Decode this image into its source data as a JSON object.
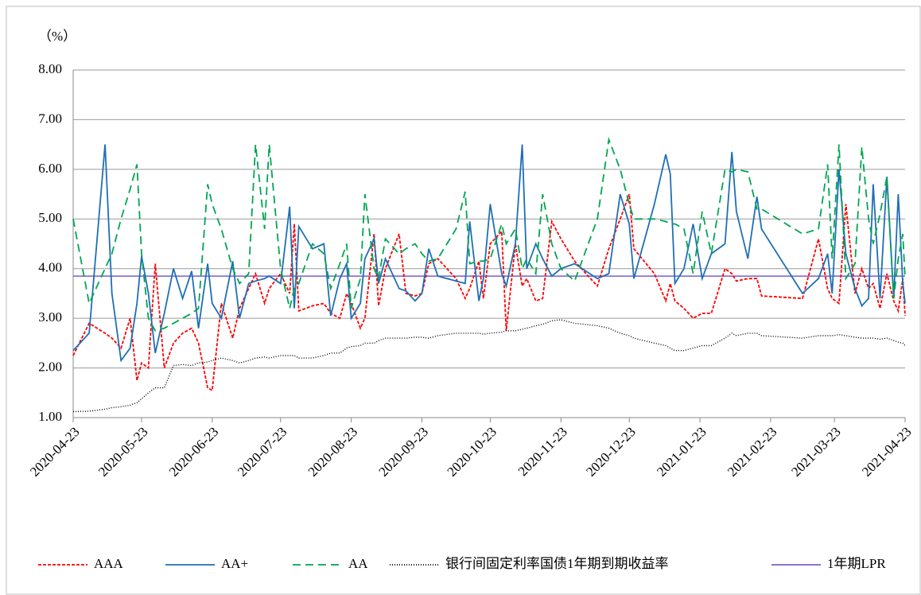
{
  "chart_data": {
    "type": "line",
    "y_axis_label": "（%）",
    "x": [
      "2020-04-23",
      "2020-04-30",
      "2020-05-07",
      "2020-05-10",
      "2020-05-14",
      "2020-05-18",
      "2020-05-21",
      "2020-05-23",
      "2020-05-26",
      "2020-05-29",
      "2020-06-02",
      "2020-06-06",
      "2020-06-10",
      "2020-06-14",
      "2020-06-17",
      "2020-06-21",
      "2020-06-23",
      "2020-06-27",
      "2020-07-02",
      "2020-07-05",
      "2020-07-09",
      "2020-07-12",
      "2020-07-16",
      "2020-07-18",
      "2020-07-23",
      "2020-07-27",
      "2020-07-29",
      "2020-07-31",
      "2020-08-06",
      "2020-08-11",
      "2020-08-14",
      "2020-08-18",
      "2020-08-21",
      "2020-08-23",
      "2020-08-27",
      "2020-08-29",
      "2020-09-02",
      "2020-09-04",
      "2020-09-07",
      "2020-09-13",
      "2020-09-16",
      "2020-09-20",
      "2020-09-23",
      "2020-09-26",
      "2020-09-30",
      "2020-10-08",
      "2020-10-12",
      "2020-10-14",
      "2020-10-18",
      "2020-10-20",
      "2020-10-23",
      "2020-10-28",
      "2020-10-30",
      "2020-11-03",
      "2020-11-06",
      "2020-11-08",
      "2020-11-12",
      "2020-11-15",
      "2020-11-19",
      "2020-11-23",
      "2020-11-29",
      "2020-12-09",
      "2020-12-14",
      "2020-12-19",
      "2020-12-23",
      "2020-12-25",
      "2021-01-03",
      "2021-01-08",
      "2021-01-10",
      "2021-01-12",
      "2021-01-16",
      "2021-01-20",
      "2021-01-24",
      "2021-01-28",
      "2021-02-03",
      "2021-02-06",
      "2021-02-08",
      "2021-02-13",
      "2021-02-17",
      "2021-02-19",
      "2021-03-09",
      "2021-03-16",
      "2021-03-20",
      "2021-03-22",
      "2021-03-25",
      "2021-03-28",
      "2021-04-01",
      "2021-04-04",
      "2021-04-07",
      "2021-04-09",
      "2021-04-12",
      "2021-04-15",
      "2021-04-18",
      "2021-04-20",
      "2021-04-22",
      "2021-04-23"
    ],
    "series": [
      {
        "name": "AAA",
        "color": "#ff0000",
        "dash": "4,2",
        "values": [
          2.25,
          2.9,
          2.7,
          2.6,
          2.4,
          3.0,
          1.75,
          2.1,
          2.0,
          4.1,
          2.0,
          2.5,
          2.7,
          2.8,
          2.5,
          1.6,
          1.55,
          3.3,
          2.6,
          3.2,
          3.6,
          3.9,
          3.3,
          3.6,
          3.9,
          3.5,
          4.9,
          3.15,
          3.25,
          3.3,
          3.1,
          3.0,
          3.5,
          3.3,
          2.8,
          3.0,
          4.7,
          3.25,
          4.0,
          4.7,
          3.5,
          3.45,
          3.5,
          4.1,
          4.2,
          3.8,
          3.4,
          3.6,
          4.15,
          3.4,
          4.5,
          4.75,
          2.75,
          4.5,
          3.65,
          3.8,
          3.35,
          3.4,
          4.95,
          4.6,
          4.15,
          3.65,
          4.4,
          5.0,
          5.5,
          4.4,
          3.9,
          3.35,
          3.7,
          3.35,
          3.2,
          3.0,
          3.1,
          3.1,
          4.0,
          3.9,
          3.75,
          3.8,
          3.8,
          3.45,
          3.4,
          4.6,
          3.6,
          3.4,
          3.3,
          5.3,
          3.5,
          4.0,
          3.6,
          3.7,
          3.2,
          3.9,
          3.35,
          3.15,
          3.8,
          3.05
        ]
      },
      {
        "name": "AA+",
        "color": "#1f6fb5",
        "dash": "",
        "values": [
          2.35,
          2.7,
          6.5,
          3.5,
          2.15,
          2.4,
          3.3,
          4.25,
          3.5,
          2.3,
          3.1,
          4.0,
          3.4,
          3.95,
          2.8,
          4.1,
          3.3,
          3.0,
          4.15,
          3.0,
          3.7,
          3.75,
          3.8,
          3.85,
          3.7,
          5.25,
          3.2,
          4.85,
          4.4,
          4.5,
          3.05,
          3.8,
          4.1,
          3.0,
          3.3,
          4.2,
          4.6,
          3.7,
          4.2,
          3.6,
          3.55,
          3.35,
          3.5,
          4.4,
          3.85,
          3.75,
          3.7,
          4.95,
          3.35,
          3.8,
          5.3,
          3.9,
          3.65,
          4.5,
          6.5,
          4.0,
          4.5,
          4.2,
          3.85,
          4.0,
          4.1,
          3.8,
          3.9,
          5.5,
          4.9,
          3.8,
          5.3,
          6.3,
          5.9,
          3.7,
          4.0,
          4.9,
          3.8,
          4.3,
          4.5,
          6.35,
          5.15,
          4.2,
          5.45,
          4.8,
          3.5,
          3.8,
          4.3,
          3.5,
          6.0,
          4.3,
          3.6,
          3.25,
          3.4,
          5.7,
          3.4,
          5.85,
          3.4,
          5.5,
          3.7,
          3.3
        ]
      },
      {
        "name": "AA",
        "color": "#00a651",
        "dash": "10,6",
        "values": [
          5.0,
          3.3,
          4.0,
          4.3,
          5.0,
          5.6,
          6.1,
          4.3,
          3.0,
          2.75,
          2.8,
          2.9,
          3.0,
          3.1,
          3.2,
          5.7,
          5.3,
          4.8,
          4.0,
          3.7,
          3.9,
          6.5,
          4.8,
          6.5,
          4.0,
          3.2,
          3.6,
          3.7,
          4.5,
          4.3,
          3.6,
          4.1,
          4.5,
          3.2,
          3.8,
          5.5,
          4.0,
          3.8,
          4.6,
          4.3,
          4.4,
          4.5,
          4.3,
          4.15,
          4.2,
          4.8,
          5.55,
          4.1,
          4.15,
          4.15,
          4.2,
          4.9,
          4.5,
          4.8,
          4.0,
          4.2,
          3.9,
          5.5,
          4.5,
          4.0,
          3.75,
          5.0,
          6.6,
          6.0,
          5.3,
          5.0,
          5.0,
          4.95,
          4.9,
          4.9,
          4.8,
          3.9,
          5.15,
          4.3,
          6.0,
          5.95,
          6.0,
          5.95,
          5.2,
          5.2,
          4.7,
          4.8,
          6.1,
          4.2,
          6.5,
          3.8,
          4.1,
          6.45,
          5.0,
          4.5,
          5.1,
          5.85,
          3.4,
          4.2,
          4.7,
          3.8
        ]
      },
      {
        "name": "银行间固定利率国债1年期到期收益率",
        "color": "#000000",
        "dash": "1,2",
        "values": [
          1.12,
          1.13,
          1.17,
          1.2,
          1.22,
          1.25,
          1.3,
          1.38,
          1.5,
          1.6,
          1.6,
          2.05,
          2.07,
          2.05,
          2.1,
          2.12,
          2.15,
          2.2,
          2.15,
          2.1,
          2.15,
          2.2,
          2.22,
          2.2,
          2.25,
          2.25,
          2.25,
          2.2,
          2.2,
          2.25,
          2.3,
          2.3,
          2.4,
          2.43,
          2.45,
          2.5,
          2.5,
          2.55,
          2.6,
          2.6,
          2.6,
          2.62,
          2.62,
          2.6,
          2.65,
          2.7,
          2.7,
          2.7,
          2.7,
          2.68,
          2.7,
          2.72,
          2.75,
          2.75,
          2.78,
          2.8,
          2.85,
          2.88,
          2.95,
          2.97,
          2.9,
          2.85,
          2.8,
          2.7,
          2.65,
          2.6,
          2.5,
          2.45,
          2.4,
          2.35,
          2.35,
          2.4,
          2.45,
          2.45,
          2.6,
          2.7,
          2.65,
          2.7,
          2.7,
          2.65,
          2.6,
          2.65,
          2.65,
          2.65,
          2.67,
          2.65,
          2.62,
          2.6,
          2.6,
          2.6,
          2.58,
          2.6,
          2.55,
          2.52,
          2.5,
          2.45
        ]
      }
    ],
    "hlines": [
      {
        "name": "1年期LPR",
        "color": "#7b5fc8",
        "value": 3.85
      }
    ],
    "xlim": [
      "2020-04-23",
      "2021-04-23"
    ],
    "xticks": [
      "2020-04-23",
      "2020-05-23",
      "2020-06-23",
      "2020-07-23",
      "2020-08-23",
      "2020-09-23",
      "2020-10-23",
      "2020-11-23",
      "2020-12-23",
      "2021-01-23",
      "2021-02-23",
      "2021-03-23",
      "2021-04-23"
    ],
    "ylim": [
      1,
      8
    ],
    "yticks": [
      {
        "value": 1,
        "label": "1.00"
      },
      {
        "value": 2,
        "label": "2.00"
      },
      {
        "value": 3,
        "label": "3.00"
      },
      {
        "value": 4,
        "label": "4.00"
      },
      {
        "value": 5,
        "label": "5.00"
      },
      {
        "value": 6,
        "label": "6.00"
      },
      {
        "value": 7,
        "label": "7.00"
      },
      {
        "value": 8,
        "label": "8.00"
      }
    ],
    "grid": true,
    "legend": "bottom"
  }
}
